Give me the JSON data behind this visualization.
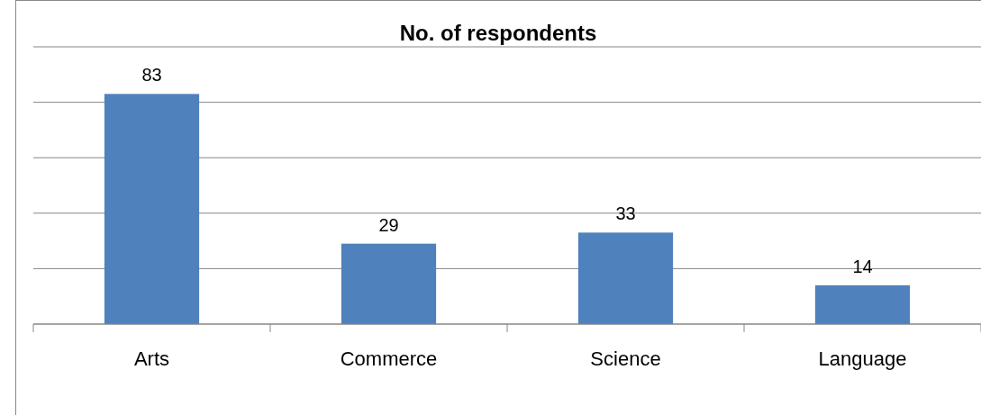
{
  "chart_data": {
    "type": "bar",
    "title": "No. of respondents",
    "categories": [
      "Arts",
      "Commerce",
      "Science",
      "Language"
    ],
    "values": [
      83,
      29,
      33,
      14
    ],
    "color": "#4f81bd",
    "ylim": [
      0,
      100
    ],
    "yticks": [
      {
        "value": 0,
        "label": null
      },
      {
        "value": 20,
        "label": null
      },
      {
        "value": 40,
        "label": null
      },
      {
        "value": 60,
        "label": null
      },
      {
        "value": 80,
        "label": null
      },
      {
        "value": 100,
        "label": null
      }
    ],
    "tick_labels": "x",
    "grid": "y",
    "data_labels": true
  }
}
